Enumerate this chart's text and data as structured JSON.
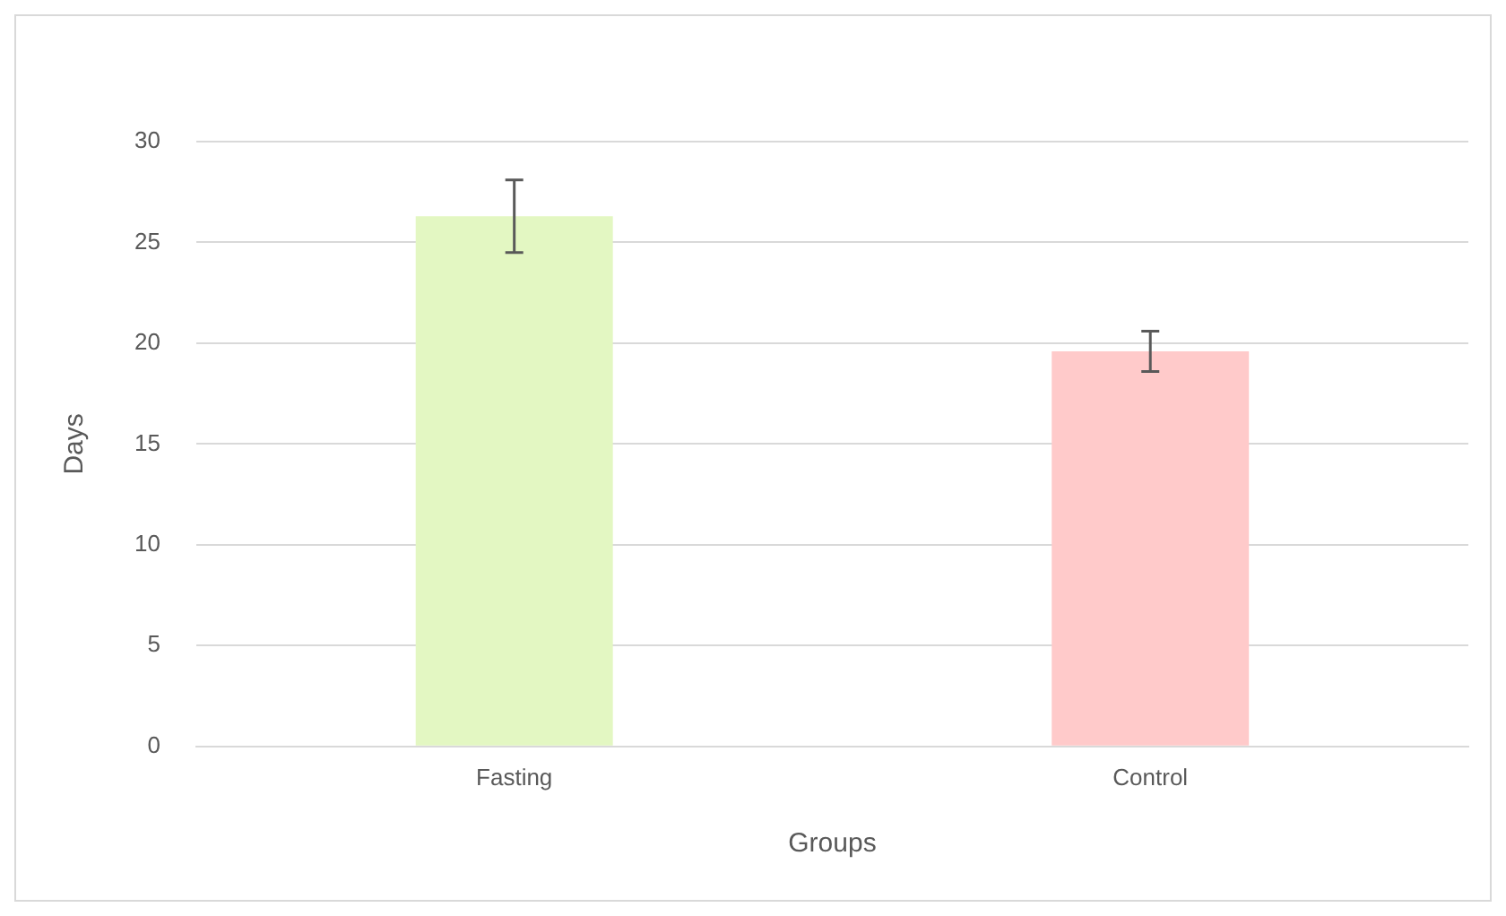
{
  "chart_data": {
    "type": "bar",
    "xlabel": "Groups",
    "ylabel": "Days",
    "categories": [
      "Fasting",
      "Control"
    ],
    "values": [
      26.3,
      19.6
    ],
    "errors": [
      [
        24.5,
        28.1
      ],
      [
        18.6,
        20.6
      ]
    ],
    "colors": [
      "#e3f7c2",
      "#ffcaca"
    ],
    "ylim": [
      0,
      30
    ],
    "yticks": [
      0,
      5,
      10,
      15,
      20,
      25,
      30
    ],
    "grid": "y"
  }
}
